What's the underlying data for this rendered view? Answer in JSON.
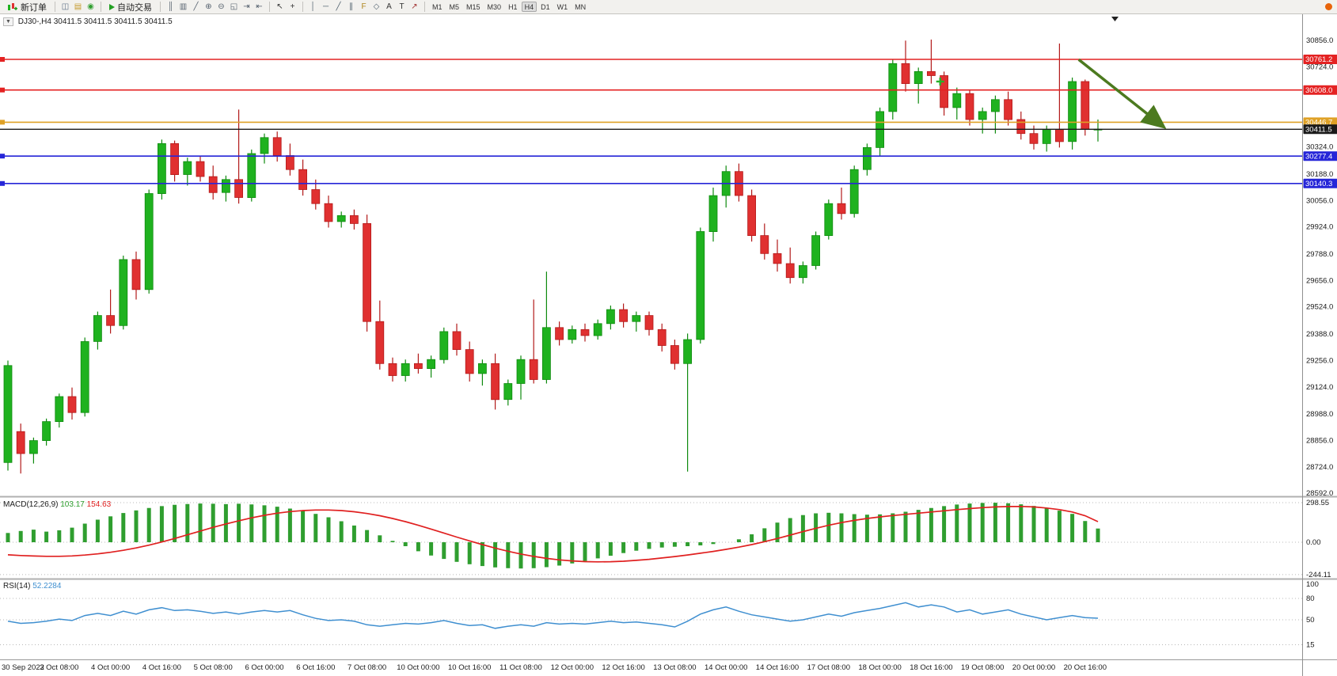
{
  "toolbar": {
    "new_order_label": "新订单",
    "autotrading_label": "自动交易",
    "icon_groups": {
      "a": [
        {
          "name": "charts-icon",
          "glyph": "◫",
          "color": "#5c6f86"
        },
        {
          "name": "profiles-icon",
          "glyph": "▤",
          "color": "#c59a2d"
        },
        {
          "name": "alerts-icon",
          "glyph": "◉",
          "color": "#2f9e2f"
        }
      ],
      "b": [
        {
          "name": "bar-chart-icon",
          "glyph": "║",
          "color": "#55616e"
        },
        {
          "name": "candlestick-icon",
          "glyph": "▥",
          "color": "#55616e"
        },
        {
          "name": "line-chart-icon",
          "glyph": "╱",
          "color": "#55616e"
        },
        {
          "name": "zoom-in-icon",
          "glyph": "⊕",
          "color": "#55616e"
        },
        {
          "name": "zoom-out-icon",
          "glyph": "⊖",
          "color": "#55616e"
        },
        {
          "name": "tile-windows-icon",
          "glyph": "◱",
          "color": "#55616e"
        },
        {
          "name": "auto-scroll-icon",
          "glyph": "⇥",
          "color": "#55616e"
        },
        {
          "name": "chart-shift-icon",
          "glyph": "⇤",
          "color": "#55616e"
        }
      ],
      "c": [
        {
          "name": "cursor-icon",
          "glyph": "↖",
          "color": "#333333"
        },
        {
          "name": "crosshair-icon",
          "glyph": "+",
          "color": "#333333"
        }
      ],
      "d": [
        {
          "name": "vertical-line-icon",
          "glyph": "│",
          "color": "#50616e"
        },
        {
          "name": "horizontal-line-icon",
          "glyph": "─",
          "color": "#50616e"
        },
        {
          "name": "trendline-icon",
          "glyph": "╱",
          "color": "#50616e"
        },
        {
          "name": "channel-icon",
          "glyph": "∥",
          "color": "#50616e"
        },
        {
          "name": "fibonacci-icon",
          "glyph": "F",
          "color": "#b08820"
        },
        {
          "name": "shapes-icon",
          "glyph": "◇",
          "color": "#50616e"
        },
        {
          "name": "text-icon",
          "glyph": "A",
          "color": "#333333"
        },
        {
          "name": "text-label-icon",
          "glyph": "T",
          "color": "#333333"
        },
        {
          "name": "arrow-icon",
          "glyph": "↗",
          "color": "#a03030"
        }
      ]
    },
    "timeframes": [
      "M1",
      "M5",
      "M15",
      "M30",
      "H1",
      "H4",
      "D1",
      "W1",
      "MN"
    ],
    "active_timeframe": "H4"
  },
  "chart_header": {
    "collapse_icon": "▼",
    "title": "DJ30-,H4 30411.5 30411.5 30411.5 30411.5"
  },
  "macd_header": {
    "label": "MACD(12,26,9)",
    "value_main": "103.17",
    "value_signal": "154.63"
  },
  "rsi_header": {
    "label": "RSI(14)",
    "value": "52.2284"
  },
  "chart_data": {
    "type": "candlestick",
    "symbol": "DJ30-",
    "period": "H4",
    "price_axis": {
      "min": 28592,
      "max": 30856,
      "ticks": [
        {
          "label": "30856.0",
          "price": 30856
        },
        {
          "label": "30724.0",
          "price": 30724
        },
        {
          "label": "30324.0",
          "price": 30324
        },
        {
          "label": "30188.0",
          "price": 30188
        },
        {
          "label": "30056.0",
          "price": 30056
        },
        {
          "label": "29924.0",
          "price": 29924
        },
        {
          "label": "29788.0",
          "price": 29788
        },
        {
          "label": "29656.0",
          "price": 29656
        },
        {
          "label": "29524.0",
          "price": 29524
        },
        {
          "label": "29388.0",
          "price": 29388
        },
        {
          "label": "29256.0",
          "price": 29256
        },
        {
          "label": "29124.0",
          "price": 29124
        },
        {
          "label": "28988.0",
          "price": 28988
        },
        {
          "label": "28856.0",
          "price": 28856
        },
        {
          "label": "28724.0",
          "price": 28724
        },
        {
          "label": "28592.0",
          "price": 28592
        }
      ]
    },
    "time_labels": [
      {
        "label": "30 Sep 2022",
        "bar": 0
      },
      {
        "label": "3 Oct 08:00",
        "bar": 4
      },
      {
        "label": "4 Oct 00:00",
        "bar": 8
      },
      {
        "label": "4 Oct 16:00",
        "bar": 12
      },
      {
        "label": "5 Oct 08:00",
        "bar": 16
      },
      {
        "label": "6 Oct 00:00",
        "bar": 20
      },
      {
        "label": "6 Oct 16:00",
        "bar": 24
      },
      {
        "label": "7 Oct 08:00",
        "bar": 28
      },
      {
        "label": "10 Oct 00:00",
        "bar": 32
      },
      {
        "label": "10 Oct 16:00",
        "bar": 36
      },
      {
        "label": "11 Oct 08:00",
        "bar": 40
      },
      {
        "label": "12 Oct 00:00",
        "bar": 44
      },
      {
        "label": "12 Oct 16:00",
        "bar": 48
      },
      {
        "label": "13 Oct 08:00",
        "bar": 52
      },
      {
        "label": "14 Oct 00:00",
        "bar": 56
      },
      {
        "label": "14 Oct 16:00",
        "bar": 60
      },
      {
        "label": "17 Oct 08:00",
        "bar": 64
      },
      {
        "label": "18 Oct 00:00",
        "bar": 68
      },
      {
        "label": "18 Oct 16:00",
        "bar": 72
      },
      {
        "label": "19 Oct 08:00",
        "bar": 76
      },
      {
        "label": "20 Oct 00:00",
        "bar": 80
      },
      {
        "label": "20 Oct 16:00",
        "bar": 84
      }
    ],
    "candles": [
      [
        28745,
        29255,
        28705,
        29230
      ],
      [
        28900,
        28940,
        28690,
        28790
      ],
      [
        28790,
        28870,
        28740,
        28855
      ],
      [
        28855,
        28965,
        28830,
        28950
      ],
      [
        28950,
        29090,
        28920,
        29075
      ],
      [
        29075,
        29120,
        28960,
        28995
      ],
      [
        28995,
        29370,
        28975,
        29350
      ],
      [
        29350,
        29500,
        29310,
        29480
      ],
      [
        29480,
        29610,
        29390,
        29430
      ],
      [
        29430,
        29780,
        29410,
        29760
      ],
      [
        29760,
        29800,
        29560,
        29610
      ],
      [
        29610,
        30110,
        29590,
        30090
      ],
      [
        30090,
        30360,
        30060,
        30340
      ],
      [
        30340,
        30355,
        30150,
        30185
      ],
      [
        30185,
        30270,
        30130,
        30250
      ],
      [
        30250,
        30280,
        30150,
        30175
      ],
      [
        30175,
        30230,
        30060,
        30095
      ],
      [
        30095,
        30180,
        30050,
        30160
      ],
      [
        30160,
        30510,
        30040,
        30070
      ],
      [
        30070,
        30310,
        30050,
        30290
      ],
      [
        30290,
        30390,
        30240,
        30370
      ],
      [
        30370,
        30400,
        30250,
        30280
      ],
      [
        30280,
        30340,
        30180,
        30210
      ],
      [
        30210,
        30260,
        30080,
        30110
      ],
      [
        30110,
        30160,
        30010,
        30040
      ],
      [
        30040,
        30080,
        29920,
        29950
      ],
      [
        29950,
        30000,
        29920,
        29980
      ],
      [
        29980,
        30010,
        29910,
        29940
      ],
      [
        29940,
        29985,
        29400,
        29450
      ],
      [
        29450,
        29555,
        29210,
        29240
      ],
      [
        29240,
        29270,
        29150,
        29180
      ],
      [
        29180,
        29260,
        29150,
        29240
      ],
      [
        29240,
        29290,
        29190,
        29215
      ],
      [
        29215,
        29280,
        29170,
        29260
      ],
      [
        29260,
        29420,
        29240,
        29400
      ],
      [
        29400,
        29440,
        29280,
        29310
      ],
      [
        29310,
        29350,
        29150,
        29190
      ],
      [
        29190,
        29260,
        29130,
        29240
      ],
      [
        29240,
        29290,
        29010,
        29060
      ],
      [
        29060,
        29160,
        29030,
        29140
      ],
      [
        29140,
        29280,
        29060,
        29260
      ],
      [
        29260,
        29560,
        29140,
        29160
      ],
      [
        29160,
        29700,
        29140,
        29420
      ],
      [
        29420,
        29450,
        29330,
        29360
      ],
      [
        29360,
        29430,
        29340,
        29410
      ],
      [
        29410,
        29440,
        29350,
        29380
      ],
      [
        29380,
        29460,
        29360,
        29440
      ],
      [
        29440,
        29530,
        29410,
        29510
      ],
      [
        29510,
        29540,
        29420,
        29450
      ],
      [
        29450,
        29500,
        29400,
        29480
      ],
      [
        29480,
        29500,
        29380,
        29410
      ],
      [
        29410,
        29440,
        29300,
        29330
      ],
      [
        29330,
        29360,
        29210,
        29240
      ],
      [
        29240,
        29390,
        28700,
        29360
      ],
      [
        29360,
        29920,
        29340,
        29900
      ],
      [
        29900,
        30120,
        29850,
        30080
      ],
      [
        30080,
        30230,
        30020,
        30200
      ],
      [
        30200,
        30240,
        30050,
        30080
      ],
      [
        30080,
        30110,
        29850,
        29880
      ],
      [
        29880,
        29940,
        29760,
        29790
      ],
      [
        29790,
        29860,
        29700,
        29740
      ],
      [
        29740,
        29820,
        29640,
        29670
      ],
      [
        29670,
        29750,
        29640,
        29730
      ],
      [
        29730,
        29900,
        29710,
        29880
      ],
      [
        29880,
        30060,
        29860,
        30040
      ],
      [
        30040,
        30120,
        29960,
        29990
      ],
      [
        29990,
        30230,
        29970,
        30210
      ],
      [
        30210,
        30340,
        30180,
        30320
      ],
      [
        30320,
        30520,
        30280,
        30500
      ],
      [
        30500,
        30760,
        30460,
        30740
      ],
      [
        30740,
        30855,
        30600,
        30640
      ],
      [
        30640,
        30720,
        30540,
        30700
      ],
      [
        30700,
        30860,
        30640,
        30680
      ],
      [
        30680,
        30700,
        30480,
        30520
      ],
      [
        30520,
        30620,
        30460,
        30590
      ],
      [
        30590,
        30610,
        30430,
        30460
      ],
      [
        30460,
        30520,
        30390,
        30500
      ],
      [
        30500,
        30580,
        30390,
        30560
      ],
      [
        30560,
        30600,
        30430,
        30460
      ],
      [
        30460,
        30500,
        30360,
        30390
      ],
      [
        30390,
        30430,
        30310,
        30340
      ],
      [
        30340,
        30430,
        30300,
        30410
      ],
      [
        30410,
        30840,
        30320,
        30350
      ],
      [
        30350,
        30670,
        30310,
        30650
      ],
      [
        30650,
        30660,
        30380,
        30410
      ],
      [
        30410,
        30460,
        30350,
        30411.5
      ]
    ],
    "hlines": [
      {
        "price": 30761.2,
        "label": "30761.2",
        "color": "#e42222"
      },
      {
        "price": 30608.0,
        "label": "30608.0",
        "color": "#e42222"
      },
      {
        "price": 30446.7,
        "label": "30446.7",
        "color": "#dfa126"
      },
      {
        "price": 30277.4,
        "label": "30277.4",
        "color": "#2626d8"
      },
      {
        "price": 30140.3,
        "label": "30140.3",
        "color": "#2626d8"
      }
    ],
    "current_price": {
      "price": 30411.5,
      "label": "30411.5",
      "color": "#1a1a1a"
    },
    "colors": {
      "up": "#1fb21f",
      "up_border": "#0f8a0f",
      "down": "#e03030",
      "down_border": "#b21a1a",
      "macd_hist": "#2f9e2f",
      "macd_signal": "#e02020",
      "rsi_line": "#3f8fd0"
    },
    "annotations": {
      "arrow": {
        "bar_start": 83.5,
        "price_start": 30760,
        "bar_end": 90,
        "price_end": 30430,
        "color": "#4c7a1f"
      },
      "plus_marker": {
        "bar": 72.7,
        "price": 30650,
        "color": "#28b028"
      }
    },
    "macd": {
      "scale_labels": [
        {
          "label": "298.55",
          "value": 298.55
        },
        {
          "label": "0.00",
          "value": 0
        },
        {
          "label": "-244.11",
          "value": -244.11
        }
      ],
      "histogram": [
        70,
        85,
        95,
        80,
        90,
        110,
        140,
        170,
        195,
        220,
        240,
        258,
        272,
        282,
        288,
        292,
        290,
        287,
        290,
        285,
        278,
        268,
        254,
        236,
        214,
        188,
        158,
        126,
        92,
        52,
        10,
        -30,
        -68,
        -100,
        -126,
        -148,
        -166,
        -180,
        -190,
        -196,
        -198,
        -196,
        -188,
        -176,
        -160,
        -142,
        -122,
        -102,
        -82,
        -64,
        -50,
        -40,
        -34,
        -30,
        -24,
        -14,
        0,
        22,
        60,
        105,
        148,
        182,
        205,
        218,
        222,
        218,
        212,
        208,
        210,
        218,
        230,
        244,
        258,
        272,
        284,
        292,
        296,
        298,
        294,
        286,
        274,
        258,
        238,
        214,
        160,
        103
      ],
      "signal": [
        -95,
        -100,
        -104,
        -106,
        -106,
        -103,
        -97,
        -88,
        -76,
        -61,
        -43,
        -22,
        2,
        28,
        56,
        84,
        112,
        138,
        162,
        184,
        203,
        219,
        231,
        239,
        243,
        243,
        239,
        230,
        217,
        200,
        179,
        155,
        128,
        99,
        69,
        39,
        10,
        -18,
        -44,
        -68,
        -89,
        -107,
        -122,
        -133,
        -141,
        -146,
        -148,
        -147,
        -143,
        -137,
        -129,
        -119,
        -108,
        -96,
        -83,
        -69,
        -54,
        -37,
        -18,
        4,
        28,
        54,
        80,
        105,
        128,
        148,
        165,
        179,
        191,
        201,
        210,
        219,
        228,
        237,
        246,
        254,
        261,
        266,
        269,
        270,
        266,
        258,
        246,
        228,
        200,
        155
      ]
    },
    "rsi": {
      "levels": [
        {
          "label": "100",
          "value": 100
        },
        {
          "label": "80",
          "value": 80
        },
        {
          "label": "50",
          "value": 50
        },
        {
          "label": "15",
          "value": 15
        }
      ],
      "values": [
        48,
        45,
        46,
        48,
        51,
        49,
        56,
        59,
        56,
        62,
        58,
        64,
        67,
        63,
        64,
        62,
        59,
        61,
        58,
        61,
        63,
        61,
        63,
        57,
        52,
        49,
        50,
        48,
        43,
        41,
        43,
        45,
        44,
        46,
        49,
        45,
        42,
        43,
        38,
        41,
        43,
        41,
        46,
        44,
        45,
        44,
        46,
        48,
        46,
        47,
        45,
        43,
        40,
        48,
        58,
        64,
        68,
        62,
        57,
        54,
        51,
        48,
        50,
        54,
        58,
        55,
        60,
        63,
        66,
        70,
        74,
        68,
        71,
        68,
        61,
        64,
        58,
        61,
        64,
        58,
        54,
        50,
        53,
        56,
        53,
        52.23
      ]
    }
  }
}
